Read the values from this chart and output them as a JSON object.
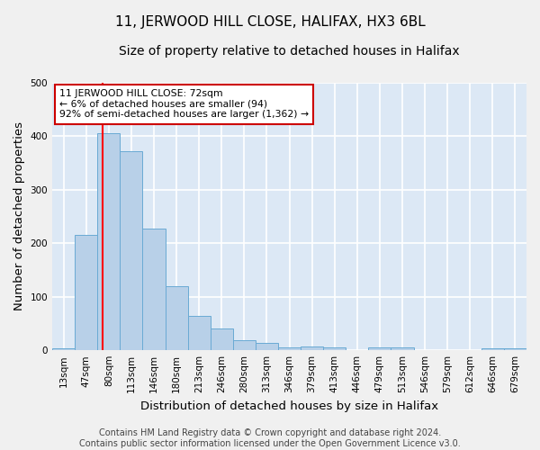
{
  "title_line1": "11, JERWOOD HILL CLOSE, HALIFAX, HX3 6BL",
  "title_line2": "Size of property relative to detached houses in Halifax",
  "xlabel": "Distribution of detached houses by size in Halifax",
  "ylabel": "Number of detached properties",
  "bar_labels": [
    "13sqm",
    "47sqm",
    "80sqm",
    "113sqm",
    "146sqm",
    "180sqm",
    "213sqm",
    "246sqm",
    "280sqm",
    "313sqm",
    "346sqm",
    "379sqm",
    "413sqm",
    "446sqm",
    "479sqm",
    "513sqm",
    "546sqm",
    "579sqm",
    "612sqm",
    "646sqm",
    "679sqm"
  ],
  "bar_values": [
    3,
    215,
    405,
    372,
    227,
    120,
    64,
    40,
    18,
    14,
    6,
    7,
    5,
    1,
    5,
    6,
    1,
    0,
    1,
    3,
    3
  ],
  "bar_color": "#b8d0e8",
  "bar_edge_color": "#6aaad4",
  "background_color": "#dce8f5",
  "grid_color": "#ffffff",
  "red_line_bin_index": 1.72,
  "annotation_line1": "11 JERWOOD HILL CLOSE: 72sqm",
  "annotation_line2": "← 6% of detached houses are smaller (94)",
  "annotation_line3": "92% of semi-detached houses are larger (1,362) →",
  "annotation_box_color": "#ffffff",
  "annotation_box_edge": "#cc0000",
  "footer_text": "Contains HM Land Registry data © Crown copyright and database right 2024.\nContains public sector information licensed under the Open Government Licence v3.0.",
  "ylim": [
    0,
    500
  ],
  "title_fontsize": 11,
  "subtitle_fontsize": 10,
  "axis_label_fontsize": 9.5,
  "tick_fontsize": 7.5,
  "footer_fontsize": 7,
  "fig_bg": "#f0f0f0"
}
